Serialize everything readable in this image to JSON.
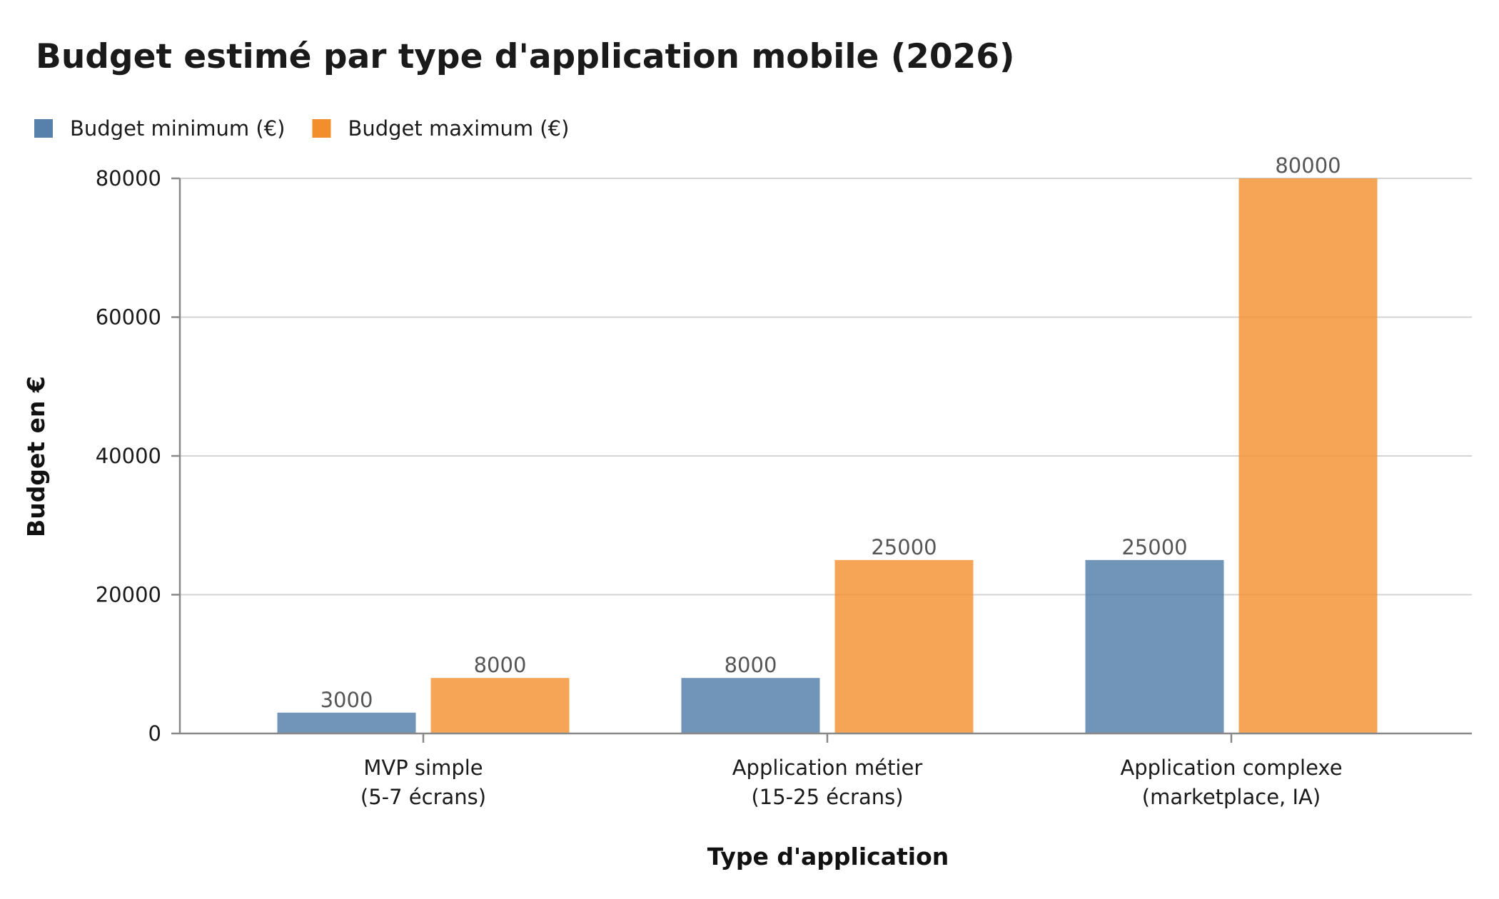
{
  "chart_data": {
    "type": "bar",
    "title": "Budget estimé par type d'application mobile (2026)",
    "xlabel": "Type d'application",
    "ylabel": "Budget en €",
    "categories": [
      [
        "MVP simple",
        "(5-7 écrans)"
      ],
      [
        "Application métier",
        "(15-25 écrans)"
      ],
      [
        "Application complexe",
        "(marketplace, IA)"
      ]
    ],
    "series": [
      {
        "name": "Budget minimum (€)",
        "values": [
          3000,
          8000,
          25000
        ],
        "color": "#4e79a7"
      },
      {
        "name": "Budget maximum (€)",
        "values": [
          8000,
          25000,
          80000
        ],
        "color": "#f28e2b"
      }
    ],
    "ylim": [
      0,
      80000
    ],
    "yticks": [
      0,
      20000,
      40000,
      60000,
      80000
    ],
    "grid": true,
    "legend": "top-left"
  }
}
